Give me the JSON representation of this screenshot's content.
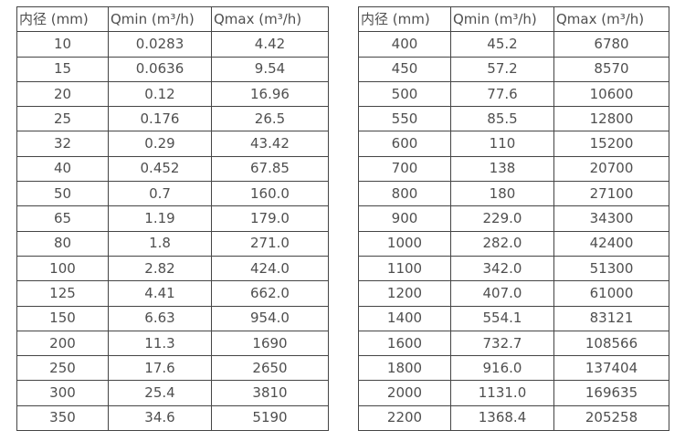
{
  "page": {
    "background_color": "#ffffff",
    "border_color": "#454545",
    "text_color": "#4f4f4f"
  },
  "tables": [
    {
      "name": "flow-spec-table-small-diameters",
      "headers": [
        "内径 (mm)",
        "Qmin (m³/h)",
        "Qmax (m³/h)"
      ],
      "rows": [
        [
          "10",
          "0.0283",
          "4.42"
        ],
        [
          "15",
          "0.0636",
          "9.54"
        ],
        [
          "20",
          "0.12",
          "16.96"
        ],
        [
          "25",
          "0.176",
          "26.5"
        ],
        [
          "32",
          "0.29",
          "43.42"
        ],
        [
          "40",
          "0.452",
          "67.85"
        ],
        [
          "50",
          "0.7",
          "160.0"
        ],
        [
          "65",
          "1.19",
          "179.0"
        ],
        [
          "80",
          "1.8",
          "271.0"
        ],
        [
          "100",
          "2.82",
          "424.0"
        ],
        [
          "125",
          "4.41",
          "662.0"
        ],
        [
          "150",
          "6.63",
          "954.0"
        ],
        [
          "200",
          "11.3",
          "1690"
        ],
        [
          "250",
          "17.6",
          "2650"
        ],
        [
          "300",
          "25.4",
          "3810"
        ],
        [
          "350",
          "34.6",
          "5190"
        ]
      ]
    },
    {
      "name": "flow-spec-table-large-diameters",
      "headers": [
        "内径 (mm)",
        "Qmin (m³/h)",
        "Qmax (m³/h)"
      ],
      "rows": [
        [
          "400",
          "45.2",
          "6780"
        ],
        [
          "450",
          "57.2",
          "8570"
        ],
        [
          "500",
          "77.6",
          "10600"
        ],
        [
          "550",
          "85.5",
          "12800"
        ],
        [
          "600",
          "110",
          "15200"
        ],
        [
          "700",
          "138",
          "20700"
        ],
        [
          "800",
          "180",
          "27100"
        ],
        [
          "900",
          "229.0",
          "34300"
        ],
        [
          "1000",
          "282.0",
          "42400"
        ],
        [
          "1100",
          "342.0",
          "51300"
        ],
        [
          "1200",
          "407.0",
          "61000"
        ],
        [
          "1400",
          "554.1",
          "83121"
        ],
        [
          "1600",
          "732.7",
          "108566"
        ],
        [
          "1800",
          "916.0",
          "137404"
        ],
        [
          "2000",
          "1131.0",
          "169635"
        ],
        [
          "2200",
          "1368.4",
          "205258"
        ]
      ]
    }
  ]
}
